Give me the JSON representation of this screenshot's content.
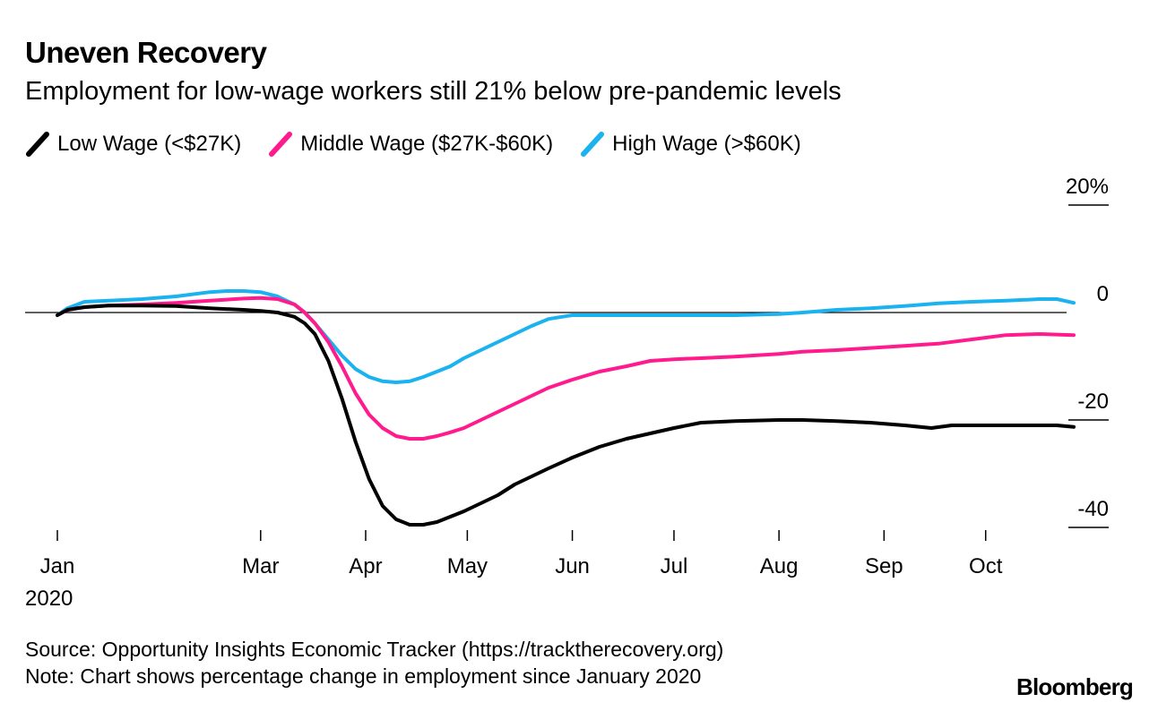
{
  "header": {
    "title": "Uneven Recovery",
    "subtitle": "Employment for low-wage workers still 21% below pre-pandemic levels"
  },
  "chart_data": {
    "type": "line",
    "xlabel": "",
    "ylabel": "",
    "ylim": [
      -40,
      20
    ],
    "y_ticks": [
      {
        "value": 20,
        "label": "20%"
      },
      {
        "value": 0,
        "label": "0"
      },
      {
        "value": -20,
        "label": "-20"
      },
      {
        "value": -40,
        "label": "-40"
      }
    ],
    "x_ticks": [
      {
        "day": 0,
        "label": "Jan"
      },
      {
        "day": 60,
        "label": "Mar"
      },
      {
        "day": 91,
        "label": "Apr"
      },
      {
        "day": 121,
        "label": "May"
      },
      {
        "day": 152,
        "label": "Jun"
      },
      {
        "day": 182,
        "label": "Jul"
      },
      {
        "day": 213,
        "label": "Aug"
      },
      {
        "day": 244,
        "label": "Sep"
      },
      {
        "day": 274,
        "label": "Oct"
      }
    ],
    "x_year_label": "2020",
    "x_unit": "days since Jan 1, 2020",
    "series": [
      {
        "name": "Low Wage (<$27K)",
        "color": "#000000",
        "x": [
          0,
          3,
          8,
          15,
          25,
          35,
          45,
          55,
          60,
          65,
          70,
          73,
          76,
          80,
          84,
          88,
          92,
          96,
          100,
          104,
          108,
          112,
          116,
          120,
          125,
          130,
          135,
          140,
          145,
          152,
          160,
          168,
          175,
          182,
          190,
          200,
          213,
          220,
          230,
          240,
          250,
          258,
          264,
          274,
          285,
          295,
          300
        ],
        "values": [
          -0.5,
          0.5,
          1.0,
          1.3,
          1.3,
          1.2,
          0.8,
          0.5,
          0.3,
          0,
          -0.8,
          -2,
          -4,
          -9,
          -16,
          -24,
          -31,
          -36,
          -38.5,
          -39.5,
          -39.5,
          -39,
          -38,
          -37,
          -35.5,
          -34,
          -32,
          -30.5,
          -29,
          -27,
          -25,
          -23.5,
          -22.5,
          -21.5,
          -20.5,
          -20.2,
          -20.0,
          -20.0,
          -20.2,
          -20.5,
          -21.0,
          -21.5,
          -21.0,
          -21.0,
          -21.0,
          -21.0,
          -21.3
        ]
      },
      {
        "name": "Middle Wage ($27K-$60K)",
        "color": "#ff1b8d",
        "x": [
          0,
          3,
          8,
          15,
          25,
          35,
          45,
          55,
          60,
          65,
          70,
          73,
          76,
          80,
          84,
          88,
          92,
          96,
          100,
          104,
          108,
          112,
          116,
          120,
          125,
          130,
          135,
          140,
          145,
          152,
          160,
          168,
          175,
          182,
          190,
          200,
          213,
          220,
          230,
          240,
          250,
          260,
          270,
          280,
          290,
          300
        ],
        "values": [
          -0.5,
          0.5,
          1.0,
          1.3,
          1.5,
          1.8,
          2.2,
          2.6,
          2.7,
          2.5,
          1.5,
          0,
          -2,
          -5.5,
          -10,
          -15,
          -19,
          -21.5,
          -23,
          -23.5,
          -23.5,
          -23,
          -22.3,
          -21.5,
          -20,
          -18.5,
          -17,
          -15.5,
          -14,
          -12.5,
          -11,
          -10,
          -9,
          -8.7,
          -8.5,
          -8.2,
          -7.7,
          -7.3,
          -7.0,
          -6.6,
          -6.2,
          -5.8,
          -5.0,
          -4.2,
          -4.0,
          -4.2
        ]
      },
      {
        "name": "High Wage (>$60K)",
        "color": "#1bb2f0",
        "x": [
          0,
          3,
          8,
          15,
          25,
          35,
          45,
          50,
          55,
          60,
          65,
          70,
          73,
          76,
          80,
          84,
          88,
          92,
          96,
          100,
          104,
          108,
          112,
          116,
          120,
          125,
          130,
          135,
          140,
          145,
          152,
          160,
          170,
          182,
          190,
          200,
          213,
          220,
          230,
          240,
          250,
          260,
          270,
          280,
          290,
          295,
          300
        ],
        "values": [
          -0.5,
          0.8,
          2.0,
          2.2,
          2.5,
          3.0,
          3.8,
          4.0,
          4.0,
          3.8,
          3.0,
          1.5,
          0,
          -2,
          -5,
          -8,
          -10.5,
          -12,
          -12.8,
          -13,
          -12.8,
          -12,
          -11,
          -10,
          -8.5,
          -7,
          -5.5,
          -4,
          -2.5,
          -1.2,
          -0.5,
          -0.5,
          -0.5,
          -0.5,
          -0.5,
          -0.5,
          -0.3,
          0,
          0.5,
          0.8,
          1.2,
          1.7,
          2.0,
          2.2,
          2.5,
          2.5,
          1.8
        ]
      }
    ]
  },
  "footer": {
    "source": "Source: Opportunity Insights Economic Tracker (https://tracktherecovery.org)",
    "note": "Note: Chart shows percentage change in employment since January 2020",
    "brand": "Bloomberg"
  }
}
